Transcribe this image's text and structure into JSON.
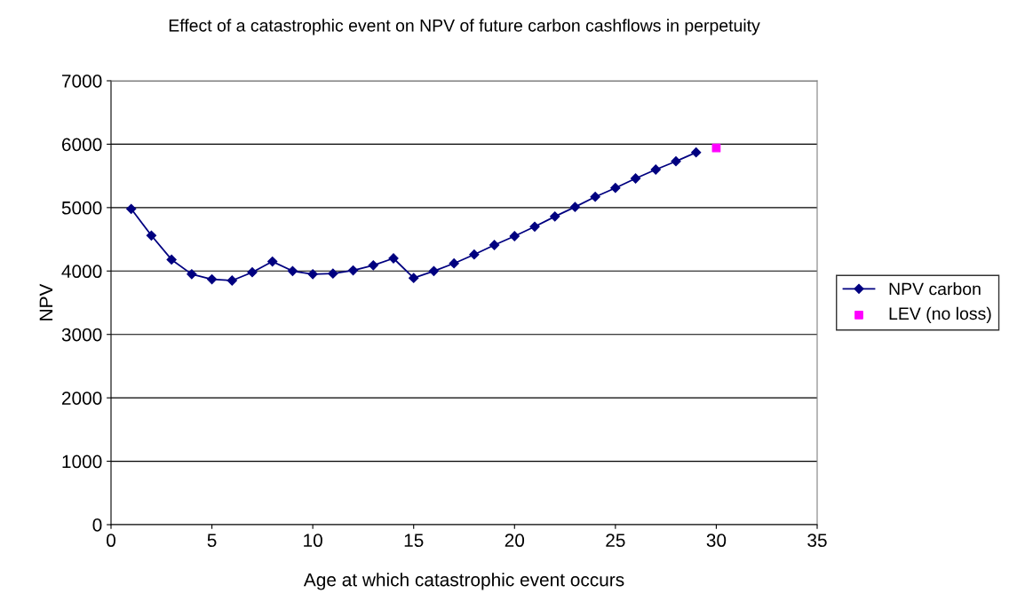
{
  "chart_data": {
    "type": "line",
    "title": "Effect of a catastrophic event on NPV of future carbon cashflows in perpetuity",
    "xlabel": "Age at which catastrophic event occurs",
    "ylabel": "NPV",
    "xlim": [
      0,
      35
    ],
    "xticks": [
      0,
      5,
      10,
      15,
      20,
      25,
      30,
      35
    ],
    "ylim": [
      0,
      7000
    ],
    "yticks": [
      0,
      1000,
      2000,
      3000,
      4000,
      5000,
      6000,
      7000
    ],
    "grid": "y",
    "legend": "right",
    "series": [
      {
        "name": "NPV carbon",
        "color": "#000080",
        "marker": "diamond",
        "line_style": "solid",
        "x": [
          1,
          2,
          3,
          4,
          5,
          6,
          7,
          8,
          9,
          10,
          11,
          12,
          13,
          14,
          15,
          16,
          17,
          18,
          19,
          20,
          21,
          22,
          23,
          24,
          25,
          26,
          27,
          28,
          29
        ],
        "values": [
          4980,
          4560,
          4180,
          3950,
          3870,
          3850,
          3980,
          4150,
          4000,
          3950,
          3960,
          4010,
          4090,
          4200,
          3890,
          4000,
          4120,
          4260,
          4410,
          4550,
          4700,
          4860,
          5010,
          5170,
          5310,
          5460,
          5600,
          5730,
          5870
        ]
      },
      {
        "name": "LEV (no loss)",
        "type": "scatter",
        "color": "#ff00ff",
        "marker": "square",
        "x": [
          30
        ],
        "values": [
          5940
        ]
      }
    ]
  }
}
